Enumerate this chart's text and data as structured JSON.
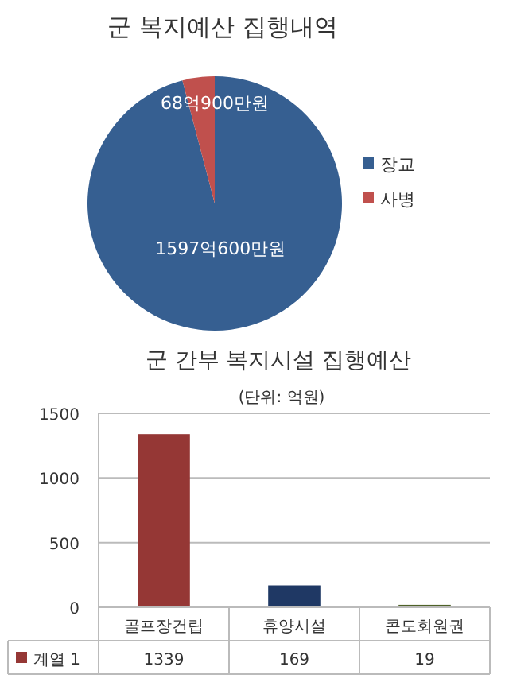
{
  "chart_data": [
    {
      "type": "pie",
      "title": "군 복지예산 집행내역",
      "categories": [
        "장교",
        "사병"
      ],
      "values": [
        1597.06,
        68.09
      ],
      "value_labels": [
        "1597억600만원",
        "68억900만원"
      ],
      "colors": [
        "#365f91",
        "#c0504d"
      ],
      "legend": "right"
    },
    {
      "type": "bar",
      "title": "군 간부 복지시설 집행예산",
      "subtitle": "(단위: 억원)",
      "categories": [
        "골프장건립",
        "휴양시설",
        "콘도회원권"
      ],
      "series": [
        {
          "name": "계열 1",
          "color": "#953735",
          "colors": [
            "#953735",
            "#1f3864",
            "#4f6228"
          ],
          "values": [
            1339,
            169,
            19
          ]
        }
      ],
      "ylim": [
        0,
        1500
      ],
      "yticks": [
        0,
        500,
        1000,
        1500
      ],
      "grid": "y",
      "data_labels": true
    }
  ]
}
